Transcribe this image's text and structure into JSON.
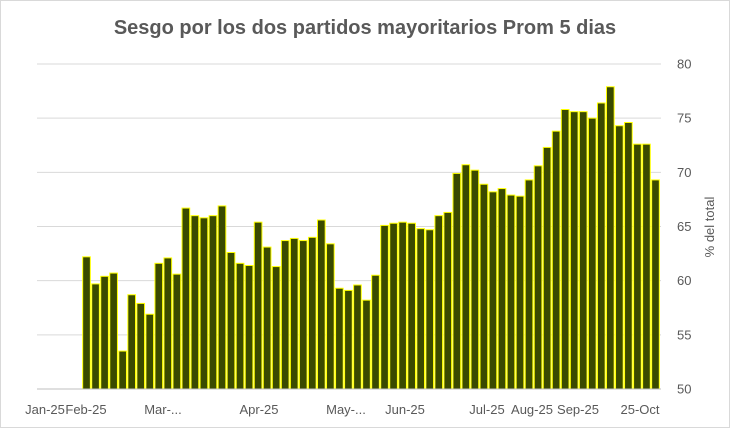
{
  "chart_data": {
    "type": "bar",
    "title": "Sesgo por los dos partidos mayoritarios Prom 5 dias",
    "ylabel": "% del total",
    "ylim": [
      50,
      80
    ],
    "yticks": [
      50,
      55,
      60,
      65,
      70,
      75,
      80
    ],
    "y_axis_position": "right",
    "grid": true,
    "bar_fill": "#3a4a00",
    "bar_edge": "#ffff00",
    "x_tick_labels": [
      "Jan-25",
      "Feb-25",
      "Mar-...",
      "Apr-25",
      "May-...",
      "Jun-25",
      "Jul-25",
      "Aug-25",
      "Sep-25",
      "25-Oct"
    ],
    "values": [
      62.2,
      59.7,
      60.4,
      60.7,
      53.5,
      58.7,
      57.9,
      56.9,
      61.6,
      62.1,
      60.6,
      66.7,
      66.0,
      65.8,
      66.0,
      66.9,
      62.6,
      61.6,
      61.4,
      65.4,
      63.1,
      61.3,
      63.7,
      63.9,
      63.7,
      64.0,
      65.6,
      63.4,
      59.3,
      59.1,
      59.6,
      58.2,
      60.5,
      65.1,
      65.3,
      65.4,
      65.3,
      64.8,
      64.7,
      66.0,
      66.3,
      69.9,
      70.7,
      70.2,
      68.9,
      68.2,
      68.5,
      67.9,
      67.8,
      69.3,
      70.6,
      72.3,
      73.8,
      75.8,
      75.6,
      75.6,
      75.0,
      76.4,
      77.9,
      74.3,
      74.6,
      72.6,
      72.6,
      69.3
    ]
  }
}
